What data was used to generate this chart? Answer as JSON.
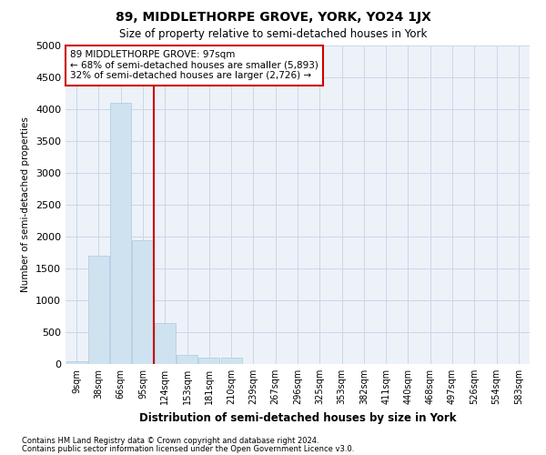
{
  "title": "89, MIDDLETHORPE GROVE, YORK, YO24 1JX",
  "subtitle": "Size of property relative to semi-detached houses in York",
  "xlabel": "Distribution of semi-detached houses by size in York",
  "ylabel": "Number of semi-detached properties",
  "footnote1": "Contains HM Land Registry data © Crown copyright and database right 2024.",
  "footnote2": "Contains public sector information licensed under the Open Government Licence v3.0.",
  "property_label": "89 MIDDLETHORPE GROVE: 97sqm",
  "annotation_line1": "← 68% of semi-detached houses are smaller (5,893)",
  "annotation_line2": "32% of semi-detached houses are larger (2,726) →",
  "bar_color": "#cfe2f0",
  "bar_edge_color": "#aac8e0",
  "vline_color": "#cc0000",
  "annotation_box_color": "#cc0000",
  "background_color": "#edf2f9",
  "ylim": [
    0,
    5000
  ],
  "yticks": [
    0,
    500,
    1000,
    1500,
    2000,
    2500,
    3000,
    3500,
    4000,
    4500,
    5000
  ],
  "bin_labels": [
    "9sqm",
    "38sqm",
    "66sqm",
    "95sqm",
    "124sqm",
    "153sqm",
    "181sqm",
    "210sqm",
    "239sqm",
    "267sqm",
    "296sqm",
    "325sqm",
    "353sqm",
    "382sqm",
    "411sqm",
    "440sqm",
    "468sqm",
    "497sqm",
    "526sqm",
    "554sqm",
    "583sqm"
  ],
  "bar_values": [
    50,
    1700,
    4100,
    1950,
    650,
    150,
    100,
    100,
    0,
    0,
    0,
    0,
    0,
    0,
    0,
    0,
    0,
    0,
    0,
    0,
    0
  ],
  "num_bins": 21,
  "vline_x": 3.5,
  "grid_color": "#ccd6e8"
}
